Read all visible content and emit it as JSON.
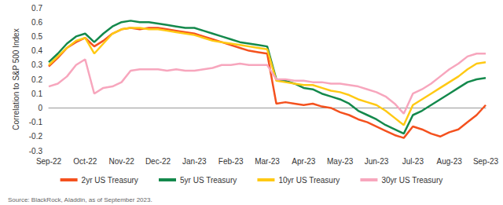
{
  "chart_data": {
    "type": "line",
    "y_label": "Correlation to S&P 500 Index",
    "annotations": [
      "Source: BlackRock, Aladdin, as of September 2023."
    ],
    "categories": [
      "Sep-22",
      null,
      null,
      null,
      "Oct-22",
      null,
      null,
      null,
      "Nov-22",
      null,
      null,
      null,
      "Dec-22",
      null,
      null,
      null,
      "Jan-23",
      null,
      null,
      null,
      "Feb-23",
      null,
      null,
      null,
      "Mar-23",
      null,
      null,
      null,
      "Apr-23",
      null,
      null,
      null,
      "May-23",
      null,
      null,
      null,
      "Jun-23",
      null,
      null,
      null,
      "Jul-23",
      null,
      null,
      null,
      "Aug-23",
      null,
      null,
      null,
      "Sep-23"
    ],
    "ylim": [
      -0.3,
      0.7
    ],
    "yticks": [
      -0.3,
      -0.2,
      -0.1,
      0,
      0.1,
      0.2,
      0.3,
      0.4,
      0.5,
      0.6,
      0.7
    ],
    "grid": false,
    "legend": "bottom",
    "series": [
      {
        "name": "2yr US Treasury",
        "color": "#f4511e",
        "values": [
          0.29,
          0.35,
          0.42,
          0.46,
          0.49,
          0.43,
          0.47,
          0.52,
          0.55,
          0.56,
          0.55,
          0.56,
          0.56,
          0.55,
          0.54,
          0.53,
          0.52,
          0.5,
          0.48,
          0.46,
          0.44,
          0.42,
          0.4,
          0.39,
          0.38,
          0.03,
          0.04,
          0.03,
          0.02,
          0.03,
          0.01,
          0.0,
          -0.03,
          -0.05,
          -0.08,
          -0.1,
          -0.13,
          -0.16,
          -0.19,
          -0.21,
          -0.13,
          -0.15,
          -0.18,
          -0.2,
          -0.17,
          -0.15,
          -0.1,
          -0.05,
          0.02
        ]
      },
      {
        "name": "5yr US Treasury",
        "color": "#14894c",
        "values": [
          0.32,
          0.38,
          0.45,
          0.5,
          0.52,
          0.46,
          0.52,
          0.57,
          0.6,
          0.61,
          0.6,
          0.6,
          0.59,
          0.58,
          0.57,
          0.56,
          0.56,
          0.54,
          0.52,
          0.5,
          0.48,
          0.46,
          0.45,
          0.44,
          0.43,
          0.2,
          0.19,
          0.17,
          0.14,
          0.13,
          0.1,
          0.08,
          0.06,
          0.03,
          -0.02,
          -0.05,
          -0.08,
          -0.12,
          -0.15,
          -0.18,
          -0.05,
          -0.02,
          0.02,
          0.06,
          0.1,
          0.14,
          0.18,
          0.2,
          0.21
        ]
      },
      {
        "name": "10yr US Treasury",
        "color": "#ffc914",
        "values": [
          0.3,
          0.36,
          0.42,
          0.47,
          0.49,
          0.38,
          0.45,
          0.52,
          0.55,
          0.56,
          0.56,
          0.55,
          0.55,
          0.54,
          0.53,
          0.52,
          0.51,
          0.49,
          0.47,
          0.46,
          0.45,
          0.44,
          0.43,
          0.42,
          0.41,
          0.19,
          0.18,
          0.17,
          0.16,
          0.16,
          0.14,
          0.12,
          0.11,
          0.09,
          0.06,
          0.04,
          0.02,
          -0.02,
          -0.07,
          -0.12,
          0.02,
          0.06,
          0.1,
          0.14,
          0.18,
          0.22,
          0.27,
          0.31,
          0.32
        ]
      },
      {
        "name": "30yr US Treasury",
        "color": "#f7a6bd",
        "values": [
          0.15,
          0.17,
          0.22,
          0.3,
          0.34,
          0.1,
          0.14,
          0.15,
          0.18,
          0.26,
          0.27,
          0.27,
          0.27,
          0.26,
          0.27,
          0.26,
          0.26,
          0.27,
          0.28,
          0.3,
          0.3,
          0.31,
          0.3,
          0.3,
          0.3,
          0.2,
          0.2,
          0.19,
          0.19,
          0.18,
          0.18,
          0.17,
          0.17,
          0.16,
          0.15,
          0.13,
          0.11,
          0.08,
          0.03,
          -0.04,
          0.1,
          0.13,
          0.17,
          0.22,
          0.27,
          0.31,
          0.36,
          0.38,
          0.38
        ]
      }
    ]
  }
}
